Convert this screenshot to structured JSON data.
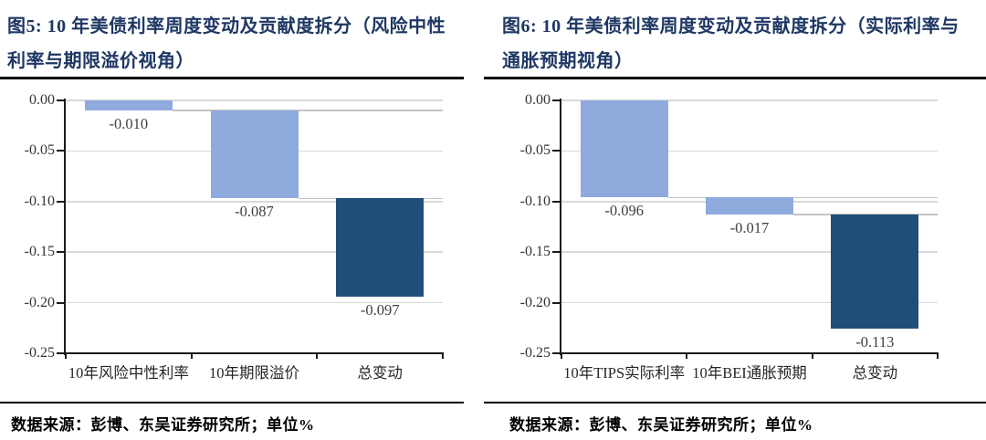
{
  "panels": [
    {
      "title": "图5:  10 年美债利率周度变动及贡献度拆分（风险中性利率与期限溢价视角）",
      "source": "数据来源：彭博、东吴证券研究所；单位%"
    },
    {
      "title": "图6:  10 年美债利率周度变动及贡献度拆分（实际利率与通胀预期视角）",
      "source": "数据来源：彭博、东吴证券研究所；单位%"
    }
  ],
  "colors": {
    "title_navy": "#1f3864",
    "bar_light_blue": "#8faadc",
    "bar_dark_navy": "#1f4e79",
    "gridline": "#d9d9d9",
    "connector": "#c3c3c3",
    "axis": "#1a1a1a"
  },
  "chart_data": [
    {
      "type": "bar",
      "subtype": "waterfall",
      "title": "图5: 10 年美债利率周度变动及贡献度拆分（风险中性利率与期限溢价视角）",
      "categories": [
        "10年风险中性利率",
        "10年期限溢价",
        "总变动"
      ],
      "values": [
        -0.01,
        -0.087,
        -0.097
      ],
      "value_labels": [
        "-0.010",
        "-0.087",
        "-0.097"
      ],
      "segments": [
        {
          "from": 0,
          "to": -0.01
        },
        {
          "from": -0.01,
          "to": -0.097
        },
        {
          "from": -0.097,
          "to": -0.194
        }
      ],
      "bar_colors": [
        "#8faadc",
        "#8faadc",
        "#1f4e79"
      ],
      "yticks": [
        {
          "label": "0.00",
          "value": 0
        },
        {
          "label": "-0.05",
          "value": -0.05
        },
        {
          "label": "-0.10",
          "value": -0.1
        },
        {
          "label": "-0.15",
          "value": -0.15
        },
        {
          "label": "-0.20",
          "value": -0.2
        },
        {
          "label": "-0.25",
          "value": -0.25
        }
      ],
      "ylim": [
        0,
        -0.25
      ],
      "grid": true,
      "legend": "none",
      "unit": "%",
      "source": "数据来源：彭博、东吴证券研究所；单位%"
    },
    {
      "type": "bar",
      "subtype": "waterfall",
      "title": "图6: 10 年美债利率周度变动及贡献度拆分（实际利率与通胀预期视角）",
      "categories": [
        "10年TIPS实际利率",
        "10年BEI通胀预期",
        "总变动"
      ],
      "values": [
        -0.096,
        -0.017,
        -0.113
      ],
      "value_labels": [
        "-0.096",
        "-0.017",
        "-0.113"
      ],
      "segments": [
        {
          "from": 0,
          "to": -0.096
        },
        {
          "from": -0.096,
          "to": -0.113
        },
        {
          "from": -0.113,
          "to": -0.226
        }
      ],
      "bar_colors": [
        "#8faadc",
        "#8faadc",
        "#1f4e79"
      ],
      "yticks": [
        {
          "label": "0.00",
          "value": 0
        },
        {
          "label": "-0.05",
          "value": -0.05
        },
        {
          "label": "-0.10",
          "value": -0.1
        },
        {
          "label": "-0.15",
          "value": -0.15
        },
        {
          "label": "-0.20",
          "value": -0.2
        },
        {
          "label": "-0.25",
          "value": -0.25
        }
      ],
      "ylim": [
        0,
        -0.25
      ],
      "grid": true,
      "legend": "none",
      "unit": "%",
      "source": "数据来源：彭博、东吴证券研究所；单位%"
    }
  ]
}
